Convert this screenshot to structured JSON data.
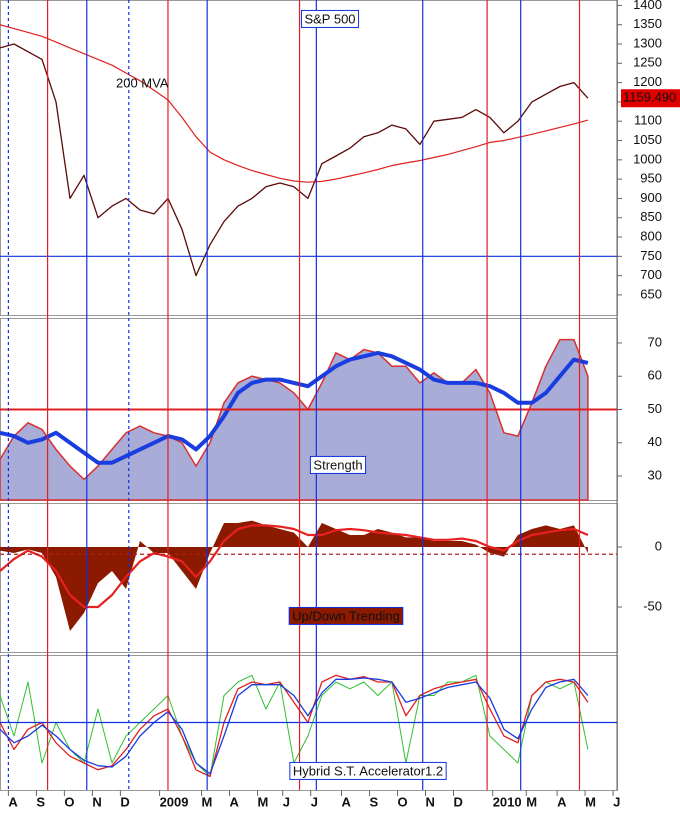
{
  "event_lines": [
    {
      "x": 1.4,
      "color": "#e02020",
      "dashed": false
    },
    {
      "x": 5.7,
      "color": "#e02020",
      "dashed": false
    },
    {
      "x": 10.4,
      "color": "#e02020",
      "dashed": false
    },
    {
      "x": 17.1,
      "color": "#e02020",
      "dashed": false
    },
    {
      "x": 20.4,
      "color": "#e02020",
      "dashed": false
    },
    {
      "x": 2.8,
      "color": "#1030e0",
      "dashed": false
    },
    {
      "x": 7.1,
      "color": "#1030e0",
      "dashed": false
    },
    {
      "x": 11.0,
      "color": "#1030e0",
      "dashed": false
    },
    {
      "x": 14.8,
      "color": "#1030e0",
      "dashed": false
    },
    {
      "x": 18.3,
      "color": "#1030e0",
      "dashed": false
    },
    {
      "x": 0,
      "color": "#1030e0",
      "dashed": true
    },
    {
      "x": 4.3,
      "color": "#1030e0",
      "dashed": true
    }
  ],
  "chart_data": [
    {
      "type": "line",
      "title": "S&P 500",
      "annotation": "200 MVA",
      "last_price": {
        "value": 1159.49,
        "label": "1159.490"
      },
      "xlim": [
        -0.3,
        21.74
      ],
      "ylim": [
        598,
        1414
      ],
      "yticks": [
        650,
        700,
        750,
        800,
        850,
        900,
        950,
        1000,
        1050,
        1100,
        1150,
        1200,
        1250,
        1300,
        1350,
        1400
      ],
      "hline": {
        "value": 750,
        "color": "#1030e0"
      },
      "x": [
        -0.3,
        0.2,
        0.7,
        1.2,
        1.7,
        2.2,
        2.7,
        3.2,
        3.7,
        4.2,
        4.7,
        5.2,
        5.7,
        6.2,
        6.7,
        7.2,
        7.7,
        8.2,
        8.7,
        9.2,
        9.7,
        10.2,
        10.7,
        11.2,
        11.7,
        12.2,
        12.7,
        13.2,
        13.7,
        14.2,
        14.7,
        15.2,
        15.7,
        16.2,
        16.7,
        17.2,
        17.7,
        18.2,
        18.7,
        19.2,
        19.7,
        20.2,
        20.7
      ],
      "series": [
        {
          "style": "line",
          "color": "#5a0a0a",
          "width": 1.3,
          "values": [
            1290,
            1300,
            1280,
            1260,
            1150,
            900,
            960,
            850,
            880,
            900,
            870,
            860,
            900,
            820,
            700,
            780,
            840,
            880,
            900,
            930,
            940,
            930,
            900,
            990,
            1010,
            1030,
            1060,
            1070,
            1090,
            1080,
            1040,
            1100,
            1105,
            1110,
            1130,
            1110,
            1070,
            1100,
            1150,
            1170,
            1190,
            1200,
            1159.49
          ]
        },
        {
          "style": "line",
          "color": "#e02020",
          "width": 1.2,
          "values": [
            1350,
            1340,
            1330,
            1320,
            1305,
            1290,
            1275,
            1260,
            1245,
            1225,
            1205,
            1180,
            1155,
            1110,
            1060,
            1020,
            1000,
            985,
            972,
            962,
            952,
            945,
            942,
            944,
            950,
            958,
            966,
            975,
            985,
            992,
            998,
            1006,
            1014,
            1024,
            1034,
            1045,
            1050,
            1058,
            1066,
            1075,
            1084,
            1093,
            1103
          ]
        }
      ]
    },
    {
      "type": "line",
      "label": "Strength",
      "xlim": [
        -0.3,
        21.74
      ],
      "ylim": [
        22.8,
        77.5
      ],
      "yticks": [
        30,
        40,
        50,
        60,
        70
      ],
      "hline": {
        "value": 50,
        "color": "#e02020"
      },
      "x": [
        -0.3,
        0.2,
        0.7,
        1.2,
        1.7,
        2.2,
        2.7,
        3.2,
        3.7,
        4.2,
        4.7,
        5.2,
        5.7,
        6.2,
        6.7,
        7.2,
        7.7,
        8.2,
        8.7,
        9.2,
        9.7,
        10.2,
        10.7,
        11.2,
        11.7,
        12.2,
        12.7,
        13.2,
        13.7,
        14.2,
        14.7,
        15.2,
        15.7,
        16.2,
        16.7,
        17.2,
        17.7,
        18.2,
        18.7,
        19.2,
        19.7,
        20.2,
        20.7
      ],
      "series": [
        {
          "style": "area",
          "color": "#a8acd6",
          "stroke": "#d83030",
          "width": 1.5,
          "values": [
            35,
            42,
            46,
            44,
            38,
            33,
            29,
            33,
            38,
            43,
            45,
            43,
            42,
            40,
            33,
            40,
            52,
            58,
            60,
            59,
            58,
            55,
            50,
            58,
            67,
            65,
            68,
            67,
            63,
            63,
            58,
            61,
            58,
            58,
            62,
            55,
            43,
            42,
            52,
            63,
            71,
            71,
            60
          ]
        },
        {
          "style": "line",
          "color": "#1a3de0",
          "width": 4,
          "values": [
            43,
            42,
            40,
            41,
            43,
            40,
            37,
            34,
            34,
            36,
            38,
            40,
            42,
            41,
            38,
            42,
            48,
            55,
            58,
            59,
            59,
            58,
            57,
            60,
            63,
            65,
            66,
            67,
            66,
            64,
            62,
            59,
            58,
            58,
            58,
            57,
            55,
            52,
            52,
            55,
            60,
            65,
            64
          ]
        }
      ]
    },
    {
      "type": "line",
      "label": "Up/Down Trending",
      "xlim": [
        -0.3,
        21.74
      ],
      "ylim": [
        -87.5,
        36.7
      ],
      "yticks": [
        -50,
        0
      ],
      "hline": {
        "value": -6,
        "color": "#b02020",
        "dashed": true
      },
      "x": [
        -0.3,
        0.2,
        0.7,
        1.2,
        1.7,
        2.2,
        2.7,
        3.2,
        3.7,
        4.2,
        4.7,
        5.2,
        5.7,
        6.2,
        6.7,
        7.2,
        7.7,
        8.2,
        8.7,
        9.2,
        9.7,
        10.2,
        10.7,
        11.2,
        11.7,
        12.2,
        12.7,
        13.2,
        13.7,
        14.2,
        14.7,
        15.2,
        15.7,
        16.2,
        16.7,
        17.2,
        17.7,
        18.2,
        18.7,
        19.2,
        19.7,
        20.2,
        20.7
      ],
      "series": [
        {
          "style": "zero-area",
          "color": "#8b1a00",
          "values": [
            -3,
            -5,
            -2,
            -5,
            -25,
            -70,
            -55,
            -30,
            -20,
            -35,
            5,
            -5,
            -5,
            -20,
            -35,
            -5,
            20,
            20,
            22,
            18,
            15,
            12,
            0,
            20,
            15,
            10,
            10,
            15,
            12,
            8,
            8,
            5,
            5,
            5,
            2,
            -5,
            -8,
            10,
            15,
            18,
            15,
            18,
            -5
          ]
        },
        {
          "style": "line",
          "color": "#e82020",
          "width": 2.2,
          "values": [
            -20,
            -10,
            -3,
            -8,
            -20,
            -40,
            -50,
            -50,
            -40,
            -25,
            -12,
            -5,
            -8,
            -12,
            -25,
            -12,
            5,
            15,
            18,
            18,
            17,
            15,
            10,
            10,
            14,
            15,
            14,
            12,
            11,
            10,
            8,
            6,
            6,
            7,
            5,
            0,
            -3,
            5,
            10,
            12,
            14,
            15,
            10
          ]
        }
      ]
    },
    {
      "type": "line",
      "label": "Hybrid S.T. Accelerator1.2",
      "xlim": [
        -0.3,
        21.74
      ],
      "ylim": [
        0,
        100
      ],
      "hline": {
        "value": 50,
        "color": "#1030e0"
      },
      "xticks": [
        {
          "value": 0,
          "label": "A"
        },
        {
          "value": 1,
          "label": "S"
        },
        {
          "value": 2,
          "label": "O"
        },
        {
          "value": 3,
          "label": "N"
        },
        {
          "value": 4,
          "label": "D"
        },
        {
          "value": 5.4,
          "label": "2009"
        },
        {
          "value": 6.9,
          "label": "M"
        },
        {
          "value": 7.9,
          "label": "A"
        },
        {
          "value": 8.9,
          "label": "M"
        },
        {
          "value": 9.8,
          "label": "J"
        },
        {
          "value": 10.8,
          "label": "J"
        },
        {
          "value": 11.9,
          "label": "A"
        },
        {
          "value": 12.9,
          "label": "S"
        },
        {
          "value": 13.9,
          "label": "O"
        },
        {
          "value": 14.9,
          "label": "N"
        },
        {
          "value": 15.9,
          "label": "D"
        },
        {
          "value": 17.3,
          "label": "2010"
        },
        {
          "value": 18.5,
          "label": "M"
        },
        {
          "value": 19.6,
          "label": "A"
        },
        {
          "value": 20.6,
          "label": "M"
        },
        {
          "value": 21.6,
          "label": "J"
        }
      ],
      "x": [
        -0.3,
        0.2,
        0.7,
        1.2,
        1.7,
        2.2,
        2.7,
        3.2,
        3.7,
        4.2,
        4.7,
        5.2,
        5.7,
        6.2,
        6.7,
        7.2,
        7.7,
        8.2,
        8.7,
        9.2,
        9.7,
        10.2,
        10.7,
        11.2,
        11.7,
        12.2,
        12.7,
        13.2,
        13.7,
        14.2,
        14.7,
        15.2,
        15.7,
        16.2,
        16.7,
        17.2,
        17.7,
        18.2,
        18.7,
        19.2,
        19.7,
        20.2,
        20.7
      ],
      "series": [
        {
          "style": "line",
          "color": "#30c030",
          "width": 1,
          "values": [
            70,
            40,
            80,
            20,
            50,
            30,
            20,
            60,
            20,
            40,
            50,
            60,
            70,
            40,
            20,
            10,
            70,
            80,
            85,
            60,
            80,
            20,
            40,
            70,
            80,
            75,
            80,
            70,
            80,
            20,
            70,
            70,
            80,
            80,
            85,
            40,
            30,
            20,
            70,
            80,
            75,
            80,
            30
          ]
        },
        {
          "style": "line",
          "color": "#e02020",
          "width": 1.3,
          "values": [
            50,
            30,
            45,
            50,
            35,
            25,
            20,
            15,
            18,
            30,
            45,
            55,
            60,
            40,
            15,
            10,
            50,
            75,
            80,
            78,
            80,
            65,
            50,
            80,
            85,
            82,
            84,
            80,
            80,
            55,
            70,
            75,
            78,
            80,
            82,
            60,
            40,
            35,
            70,
            80,
            82,
            80,
            65
          ]
        },
        {
          "style": "line",
          "color": "#1a3de0",
          "width": 1.3,
          "values": [
            45,
            35,
            40,
            48,
            40,
            30,
            22,
            18,
            17,
            25,
            40,
            50,
            58,
            45,
            20,
            12,
            40,
            70,
            78,
            78,
            78,
            70,
            55,
            72,
            82,
            82,
            83,
            82,
            80,
            65,
            68,
            72,
            76,
            78,
            80,
            68,
            45,
            38,
            60,
            76,
            80,
            82,
            70
          ]
        }
      ]
    }
  ]
}
